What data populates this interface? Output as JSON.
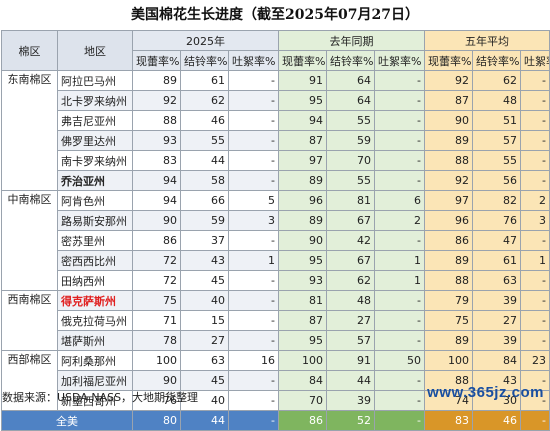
{
  "title": "美国棉花生长进度（截至2025年07月27日）",
  "header": {
    "region": "棉区",
    "state": "地区",
    "groups": [
      "2025年",
      "去年同期",
      "五年平均"
    ],
    "metrics": [
      "现蕾率%",
      "结铃率%",
      "吐絮率%"
    ]
  },
  "rows": [
    {
      "region": "东南棉区",
      "state": "阿拉巴马州",
      "v": [
        "89",
        "61",
        "-",
        "91",
        "64",
        "-",
        "92",
        "62",
        "-"
      ]
    },
    {
      "region": "",
      "state": "北卡罗来纳州",
      "v": [
        "92",
        "62",
        "-",
        "95",
        "64",
        "-",
        "87",
        "48",
        "-"
      ]
    },
    {
      "region": "",
      "state": "弗吉尼亚州",
      "v": [
        "88",
        "46",
        "-",
        "94",
        "55",
        "-",
        "90",
        "51",
        "-"
      ]
    },
    {
      "region": "",
      "state": "佛罗里达州",
      "v": [
        "93",
        "55",
        "-",
        "87",
        "59",
        "-",
        "89",
        "57",
        "-"
      ]
    },
    {
      "region": "",
      "state": "南卡罗来纳州",
      "v": [
        "83",
        "44",
        "-",
        "97",
        "70",
        "-",
        "88",
        "55",
        "-"
      ]
    },
    {
      "region": "",
      "state": "乔治亚州",
      "v": [
        "94",
        "58",
        "-",
        "89",
        "55",
        "-",
        "92",
        "56",
        "-"
      ]
    },
    {
      "region": "中南棉区",
      "state": "阿肯色州",
      "v": [
        "94",
        "66",
        "5",
        "96",
        "81",
        "6",
        "97",
        "82",
        "2"
      ]
    },
    {
      "region": "",
      "state": "路易斯安那州",
      "v": [
        "90",
        "59",
        "3",
        "89",
        "67",
        "2",
        "96",
        "76",
        "3"
      ]
    },
    {
      "region": "",
      "state": "密苏里州",
      "v": [
        "86",
        "37",
        "-",
        "90",
        "42",
        "-",
        "86",
        "47",
        "-"
      ]
    },
    {
      "region": "",
      "state": "密西西比州",
      "v": [
        "72",
        "43",
        "1",
        "95",
        "67",
        "1",
        "89",
        "61",
        "1"
      ]
    },
    {
      "region": "",
      "state": "田纳西州",
      "v": [
        "72",
        "45",
        "-",
        "93",
        "62",
        "1",
        "88",
        "63",
        "-"
      ]
    },
    {
      "region": "西南棉区",
      "state": "得克萨斯州",
      "v": [
        "75",
        "40",
        "-",
        "81",
        "48",
        "-",
        "79",
        "39",
        "-"
      ]
    },
    {
      "region": "",
      "state": "俄克拉荷马州",
      "v": [
        "71",
        "15",
        "-",
        "87",
        "27",
        "-",
        "75",
        "27",
        "-"
      ]
    },
    {
      "region": "",
      "state": "堪萨斯州",
      "v": [
        "78",
        "27",
        "-",
        "95",
        "57",
        "-",
        "89",
        "39",
        "-"
      ]
    },
    {
      "region": "西部棉区",
      "state": "阿利桑那州",
      "v": [
        "100",
        "63",
        "16",
        "100",
        "91",
        "50",
        "100",
        "84",
        "23"
      ]
    },
    {
      "region": "",
      "state": "加利福尼亚州",
      "v": [
        "90",
        "45",
        "-",
        "84",
        "44",
        "-",
        "88",
        "43",
        "-"
      ]
    },
    {
      "region": "",
      "state": "新墨西哥州",
      "v": [
        "76",
        "40",
        "-",
        "70",
        "39",
        "-",
        "74",
        "30",
        "-"
      ]
    }
  ],
  "total": {
    "label": "全美",
    "v": [
      "80",
      "44",
      "-",
      "86",
      "52",
      "-",
      "83",
      "46",
      "-"
    ]
  },
  "footer": "数据来源：USDA NASS，大地期货整理",
  "watermark": "www.365jz.com"
}
